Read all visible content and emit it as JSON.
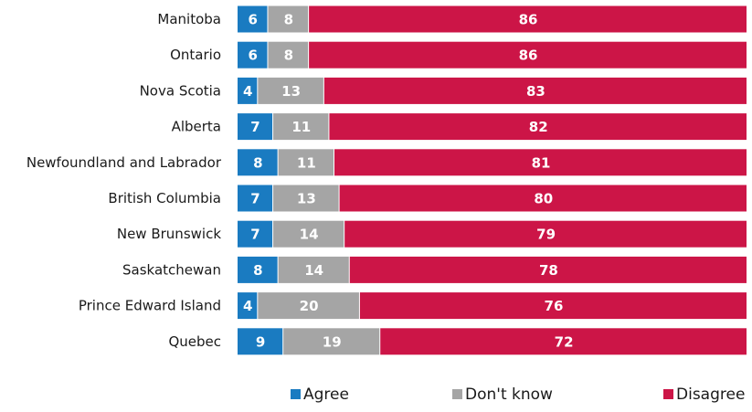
{
  "chart_data": {
    "type": "bar",
    "orientation": "horizontal",
    "stacked": true,
    "title": "",
    "xlabel": "",
    "ylabel": "",
    "xlim": [
      0,
      100
    ],
    "grid": false,
    "legend_position": "bottom-right",
    "categories": [
      "Manitoba",
      "Ontario",
      "Nova Scotia",
      "Alberta",
      "Newfoundland and Labrador",
      "British Columbia",
      "New Brunswick",
      "Saskatchewan",
      "Prince Edward Island",
      "Quebec"
    ],
    "series": [
      {
        "name": "Agree",
        "color": "#1a7bc1",
        "values": [
          6,
          6,
          4,
          7,
          8,
          7,
          7,
          8,
          4,
          9
        ]
      },
      {
        "name": "Don't know",
        "color": "#a5a5a5",
        "values": [
          8,
          8,
          13,
          11,
          11,
          13,
          14,
          14,
          20,
          19
        ]
      },
      {
        "name": "Disagree",
        "color": "#cc1547",
        "values": [
          86,
          86,
          83,
          82,
          81,
          80,
          79,
          78,
          76,
          72
        ]
      }
    ]
  }
}
